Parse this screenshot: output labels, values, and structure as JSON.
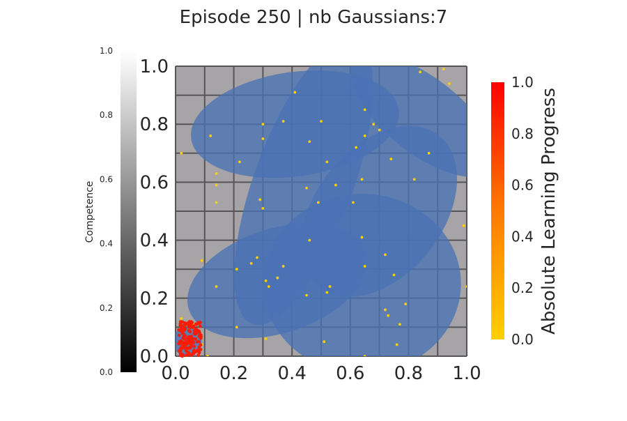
{
  "chart_data": {
    "type": "scatter",
    "title": "Episode 250 | nb Gaussians:7",
    "xlim": [
      0,
      1
    ],
    "ylim": [
      0,
      1
    ],
    "x_ticks": [
      "0.0",
      "0.2",
      "0.4",
      "0.6",
      "0.8",
      "1.0"
    ],
    "y_ticks": [
      "0.0",
      "0.2",
      "0.4",
      "0.6",
      "0.8",
      "1.0"
    ],
    "grid": true,
    "grid_cells": 10,
    "competence_colorbar": {
      "label": "Competence",
      "range": [
        0,
        1
      ],
      "ticks": [
        "0.0",
        "0.2",
        "0.4",
        "0.6",
        "0.8",
        "1.0"
      ],
      "colormap": "gray"
    },
    "lp_colorbar": {
      "label": "Absolute Learning Progress",
      "range": [
        0,
        1
      ],
      "ticks": [
        "0.0",
        "0.2",
        "0.4",
        "0.6",
        "0.8",
        "1.0"
      ],
      "colormap": "autumn_r"
    },
    "colors": {
      "background_cell": "#a6a4a6",
      "grid_line": "#555558",
      "gaussian_fill": "#4a72b5",
      "point_yellow": "#ffd000",
      "point_red": "#ff1a00"
    },
    "gaussians": [
      {
        "cx": 0.44,
        "cy": 0.6,
        "rx": 0.17,
        "ry": 0.52,
        "angle_deg": -20
      },
      {
        "cx": 0.85,
        "cy": 0.83,
        "rx": 0.3,
        "ry": 0.13,
        "angle_deg": -38
      },
      {
        "cx": 0.41,
        "cy": 0.8,
        "rx": 0.36,
        "ry": 0.18,
        "angle_deg": 8
      },
      {
        "cx": 0.64,
        "cy": 0.25,
        "rx": 0.34,
        "ry": 0.31,
        "angle_deg": 0
      },
      {
        "cx": 0.7,
        "cy": 0.5,
        "rx": 0.33,
        "ry": 0.22,
        "angle_deg": 52
      },
      {
        "cx": 0.04,
        "cy": 0.05,
        "rx": 0.05,
        "ry": 0.05,
        "angle_deg": 0
      },
      {
        "cx": 0.35,
        "cy": 0.26,
        "rx": 0.32,
        "ry": 0.18,
        "angle_deg": 18
      }
    ],
    "yellow_points": [
      [
        0.84,
        0.98
      ],
      [
        0.92,
        0.99
      ],
      [
        0.94,
        0.94
      ],
      [
        0.41,
        0.91
      ],
      [
        0.65,
        0.85
      ],
      [
        0.68,
        0.8
      ],
      [
        0.7,
        0.78
      ],
      [
        0.3,
        0.8
      ],
      [
        0.37,
        0.81
      ],
      [
        0.5,
        0.81
      ],
      [
        0.12,
        0.76
      ],
      [
        0.3,
        0.75
      ],
      [
        0.46,
        0.74
      ],
      [
        0.65,
        0.76
      ],
      [
        0.62,
        0.72
      ],
      [
        0.02,
        0.7
      ],
      [
        0.74,
        0.68
      ],
      [
        0.87,
        0.7
      ],
      [
        0.22,
        0.67
      ],
      [
        0.52,
        0.67
      ],
      [
        0.14,
        0.63
      ],
      [
        0.14,
        0.59
      ],
      [
        0.45,
        0.58
      ],
      [
        0.55,
        0.59
      ],
      [
        0.64,
        0.61
      ],
      [
        0.82,
        0.61
      ],
      [
        0.14,
        0.53
      ],
      [
        0.29,
        0.54
      ],
      [
        0.3,
        0.51
      ],
      [
        0.49,
        0.53
      ],
      [
        0.61,
        0.53
      ],
      [
        0.99,
        0.45
      ],
      [
        0.64,
        0.41
      ],
      [
        0.46,
        0.4
      ],
      [
        0.72,
        0.35
      ],
      [
        0.09,
        0.33
      ],
      [
        0.28,
        0.34
      ],
      [
        0.26,
        0.32
      ],
      [
        0.37,
        0.31
      ],
      [
        0.21,
        0.3
      ],
      [
        0.65,
        0.31
      ],
      [
        0.75,
        0.28
      ],
      [
        0.35,
        0.27
      ],
      [
        0.31,
        0.26
      ],
      [
        0.32,
        0.24
      ],
      [
        0.14,
        0.24
      ],
      [
        0.53,
        0.24
      ],
      [
        0.52,
        0.22
      ],
      [
        0.45,
        0.21
      ],
      [
        1.0,
        0.24
      ],
      [
        0.72,
        0.16
      ],
      [
        0.73,
        0.14
      ],
      [
        0.79,
        0.18
      ],
      [
        0.77,
        0.11
      ],
      [
        0.21,
        0.1
      ],
      [
        0.31,
        0.06
      ],
      [
        0.51,
        0.05
      ],
      [
        0.76,
        0.04
      ],
      [
        0.65,
        0.0
      ],
      [
        0.02,
        0.13
      ],
      [
        0.05,
        0.12
      ],
      [
        0.09,
        0.04
      ],
      [
        0.11,
        0.0
      ],
      [
        0.06,
        0.11
      ],
      [
        0.08,
        0.02
      ]
    ],
    "red_cluster": {
      "x_range": [
        0.0,
        0.1
      ],
      "y_range": [
        0.0,
        0.13
      ],
      "approx_count": 150
    }
  }
}
